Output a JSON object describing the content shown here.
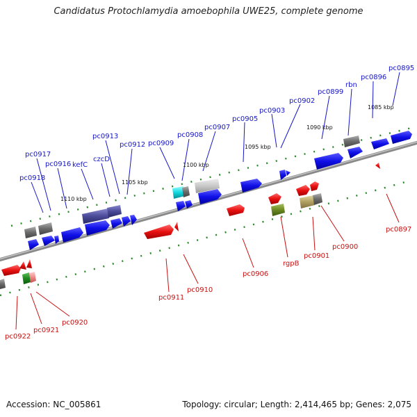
{
  "title": "Candidatus Protochlamydia amoebophila UWE25, complete genome",
  "accession": "Accession: NC_005861",
  "topology": "Topology: circular; Length: 2,414,465 bp; Genes: 2,075",
  "colors": {
    "forward_gene": "#1d1df0",
    "reverse_gene": "#e01010",
    "backbone": "#888888",
    "tick": "#2a8a2a",
    "label_top": "#1515c8",
    "label_bottom": "#c81010"
  },
  "scale_labels": [
    "1085 kbp",
    "1090 kbp",
    "1095 kbp",
    "1100 kbp",
    "1105 kbp",
    "1110 kbp"
  ],
  "top_genes": [
    "pc0895",
    "pc0896",
    "rbn",
    "pc0899",
    "pc0902",
    "pc0903",
    "pc0905",
    "pc0907",
    "pc0908",
    "pc0909",
    "pc0912",
    "pc0913",
    "czcD",
    "kefC",
    "pc0916",
    "pc0917",
    "pc0918"
  ],
  "bottom_genes": [
    "pc0897",
    "pc0900",
    "pc0901",
    "rgpB",
    "pc0906",
    "pc0910",
    "pc0911",
    "pc0920",
    "pc0921",
    "pc0922"
  ]
}
